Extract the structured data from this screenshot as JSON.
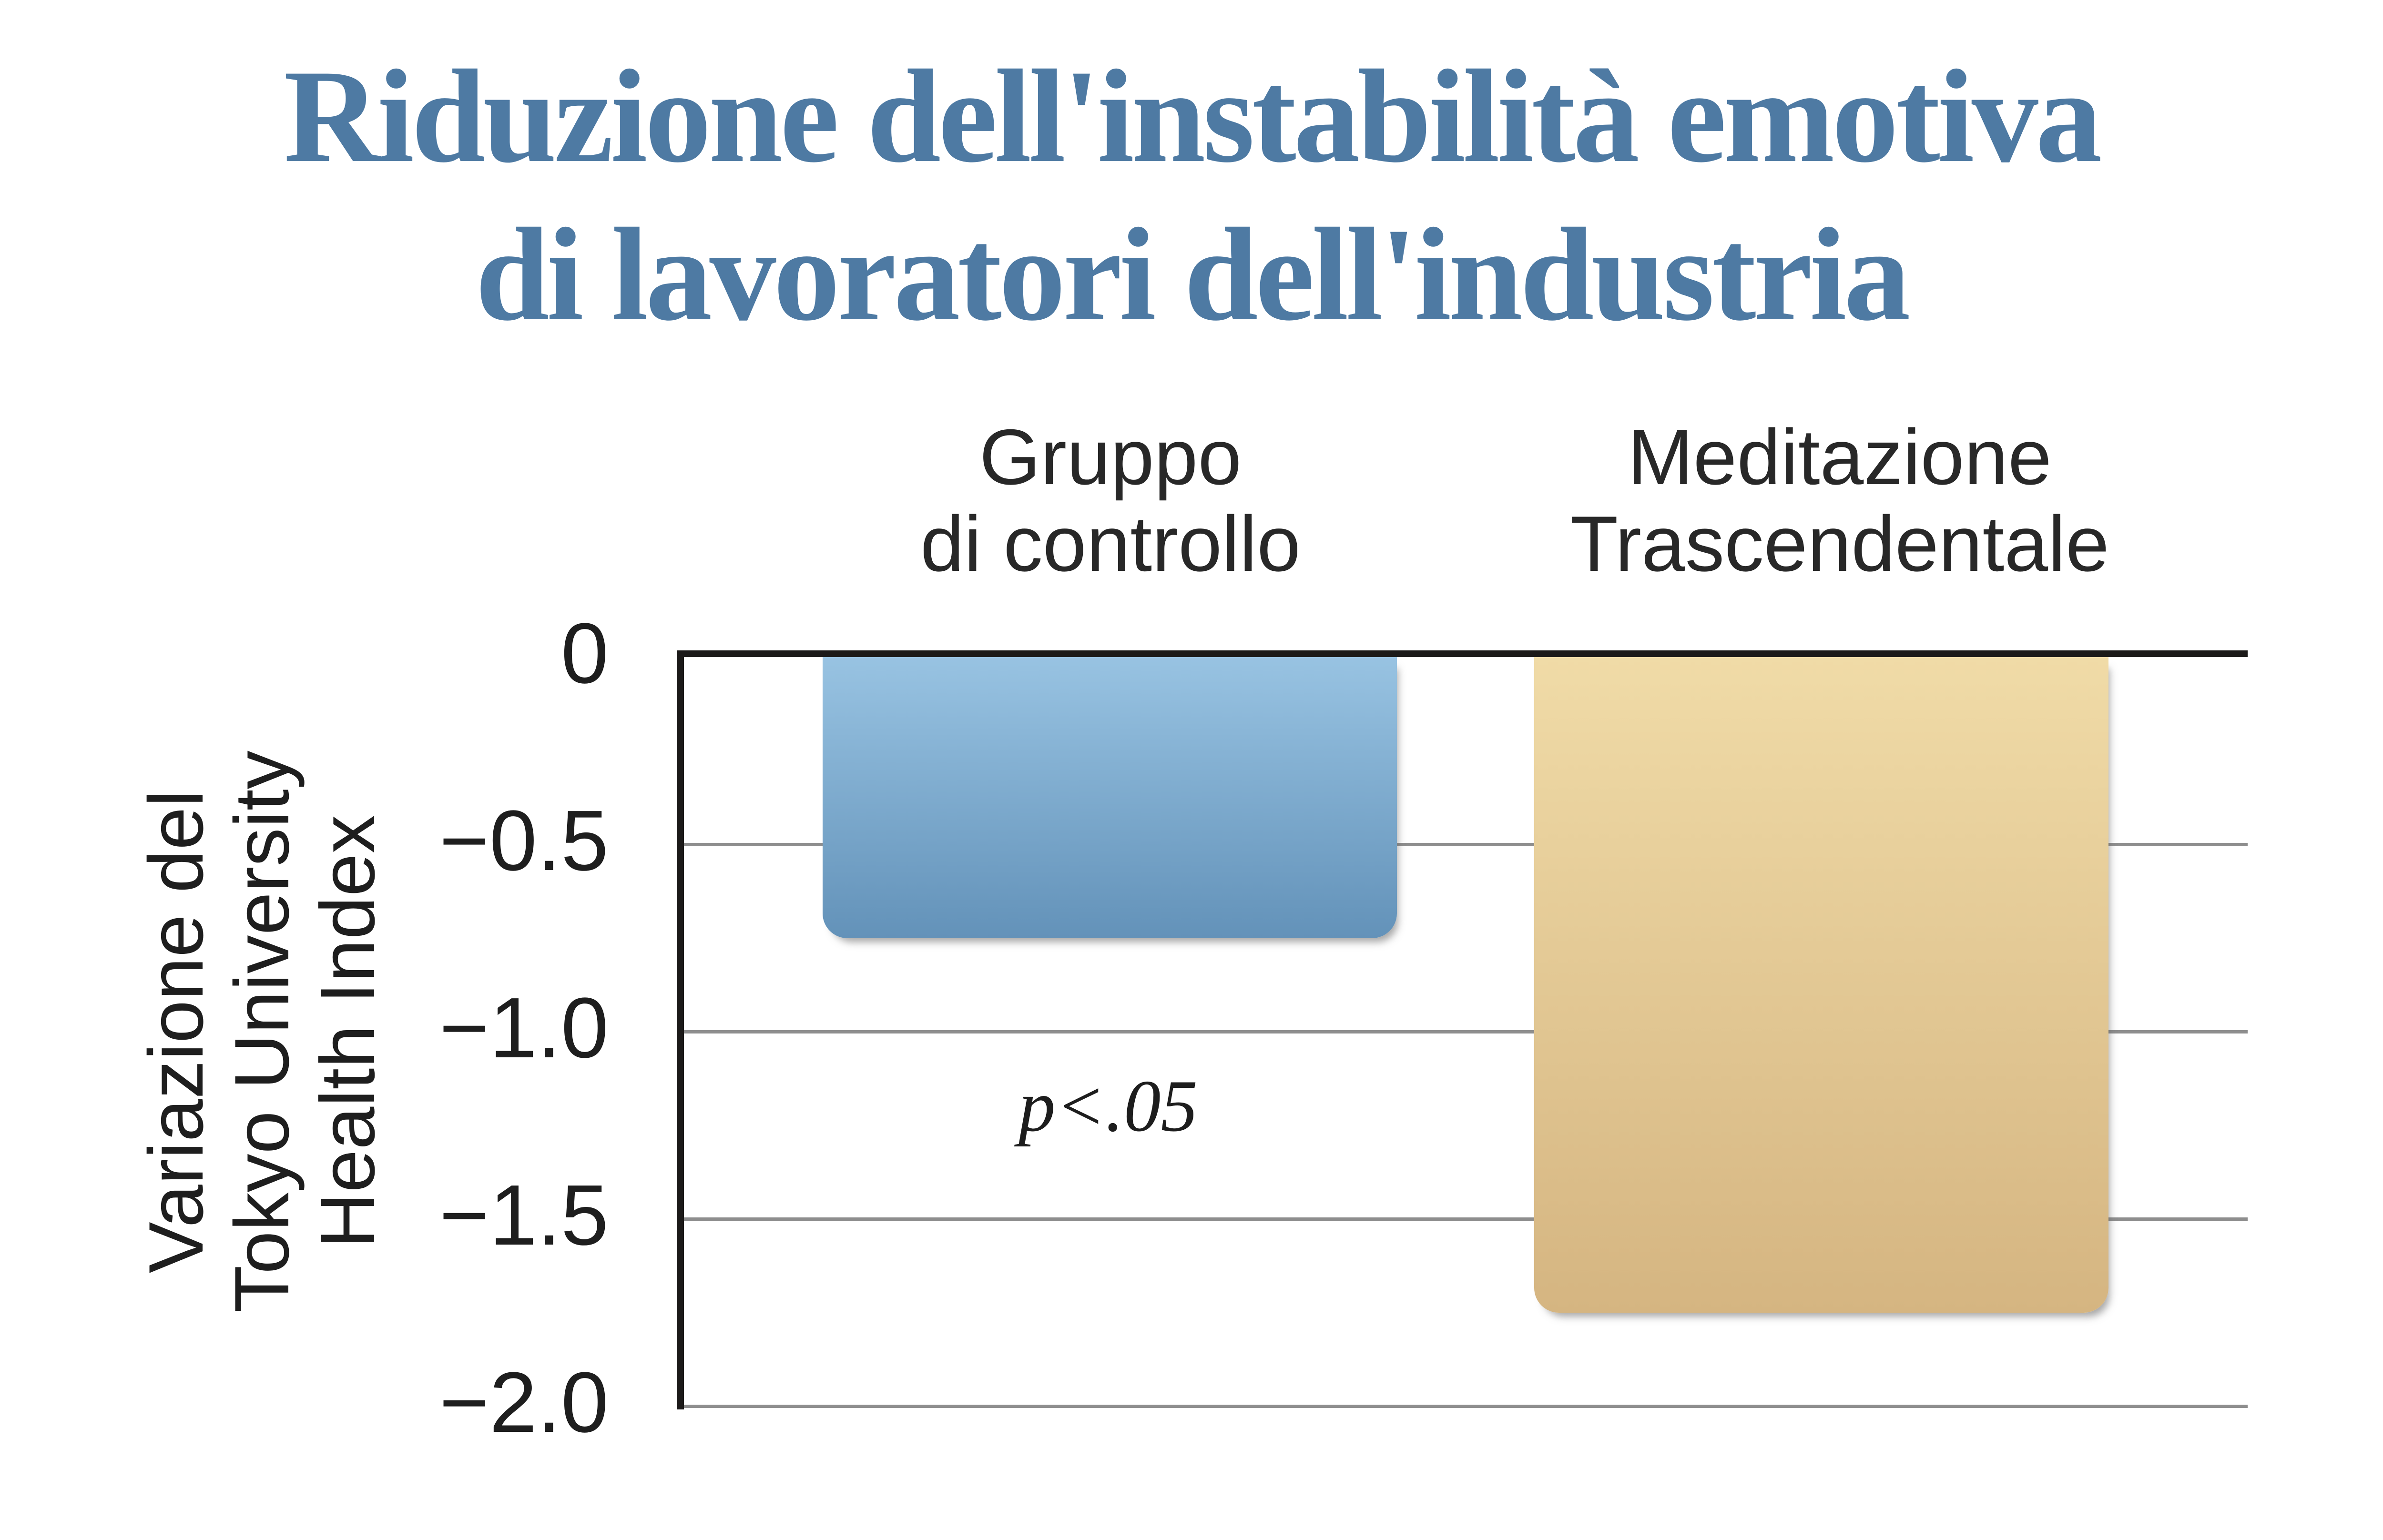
{
  "title": {
    "line1": "Riduzione dell'instabilità emotiva",
    "line2": "di lavoratori dell'industria",
    "color": "#4e7aa3"
  },
  "chart_data": {
    "type": "bar",
    "title": "Riduzione dell'instabilità emotiva di lavoratori dell'industria",
    "categories": [
      "Gruppo di controllo",
      "Meditazione Trascendentale"
    ],
    "values": [
      -0.75,
      -1.75
    ],
    "xlabel": "",
    "ylabel": "Variazione del Tokyo University Health Index",
    "ylabel_lines": [
      "Variazione del",
      "Tokyo University",
      "Health Index"
    ],
    "yticks": [
      "0",
      "−0.5",
      "−1.0",
      "−1.5",
      "−2.0"
    ],
    "ytick_values": [
      0,
      -0.5,
      -1.0,
      -1.5,
      -2.0
    ],
    "ylim": [
      -2.0,
      0
    ],
    "grid": true,
    "legend_position": "none",
    "annotation": "p<.05",
    "bar_colors": [
      {
        "top": "#98c3e2",
        "bottom": "#6392b9"
      },
      {
        "top": "#f0dba7",
        "bottom": "#d5b581"
      }
    ],
    "axis_color": "#1c1a19",
    "gridline_color": "#8e8e8e"
  },
  "column_headers": [
    {
      "line1": "Gruppo",
      "line2": "di controllo"
    },
    {
      "line1": "Meditazione",
      "line2": "Trascendentale"
    }
  ],
  "annotation": {
    "text": "p<.05"
  },
  "colors": {
    "title": "#4e7aa3",
    "header_text": "#282828",
    "tick_text": "#1e1e1e",
    "axis": "#1c1a19",
    "gridline": "#8e8e8e",
    "background": "#ffffff"
  }
}
